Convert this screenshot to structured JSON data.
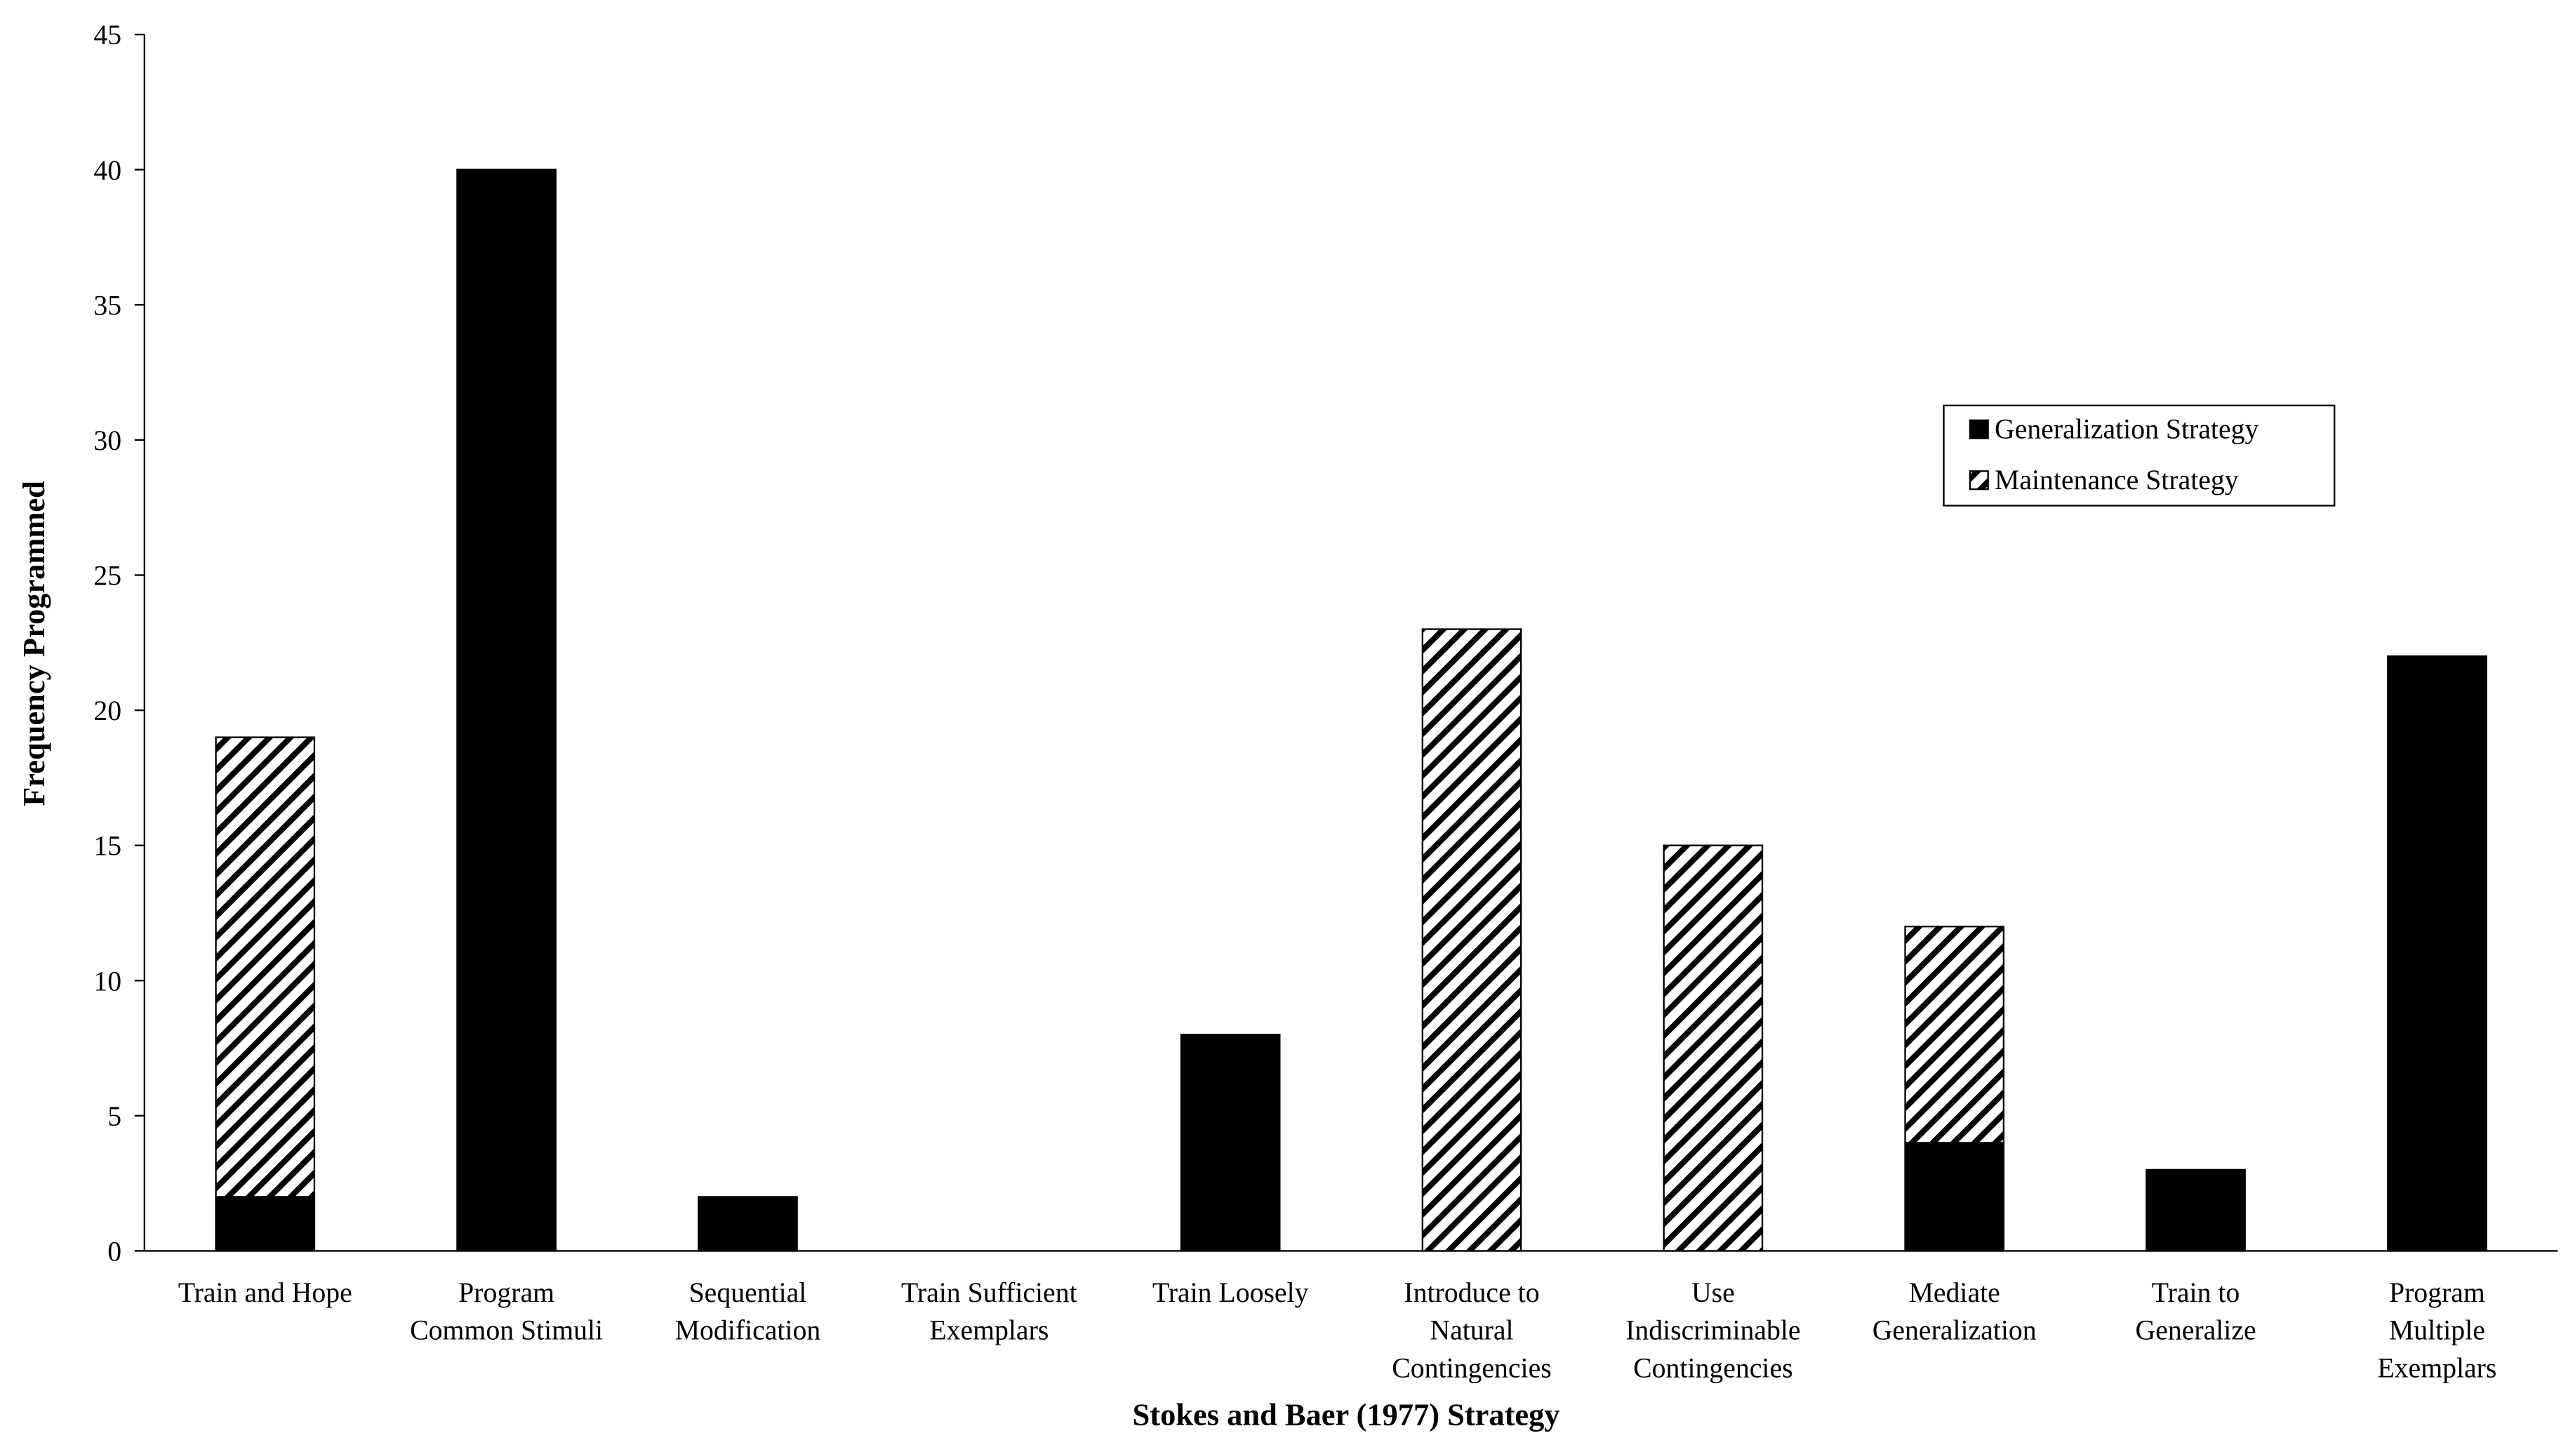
{
  "chart_data": {
    "type": "stacked_bar",
    "x_label": "Stokes and Baer (1977) Strategy",
    "y_label": "Frequency Programmed",
    "categories": [
      "Train and Hope",
      "Program\nCommon Stimuli",
      "Sequential\nModification",
      "Train Sufficient\nExemplars",
      "Train Loosely",
      "Introduce to\nNatural\nContingencies",
      "Use\nIndiscriminable\nContingencies",
      "Mediate\nGeneralization",
      "Train to\nGeneralize",
      "Program\nMultiple\nExemplars"
    ],
    "series": [
      {
        "name": "Generalization Strategy",
        "color": "#000000",
        "fill": "solid",
        "values": [
          2,
          40,
          2,
          0,
          8,
          0,
          0,
          4,
          3,
          22
        ]
      },
      {
        "name": "Maintenance Strategy",
        "color": "#000000",
        "fill": "hatch",
        "values": [
          17,
          0,
          0,
          0,
          0,
          23,
          15,
          8,
          0,
          0
        ]
      }
    ],
    "ylim": [
      0,
      45
    ],
    "yticks": [
      0,
      5,
      10,
      15,
      20,
      25,
      30,
      35,
      40,
      45
    ],
    "grid": false
  }
}
